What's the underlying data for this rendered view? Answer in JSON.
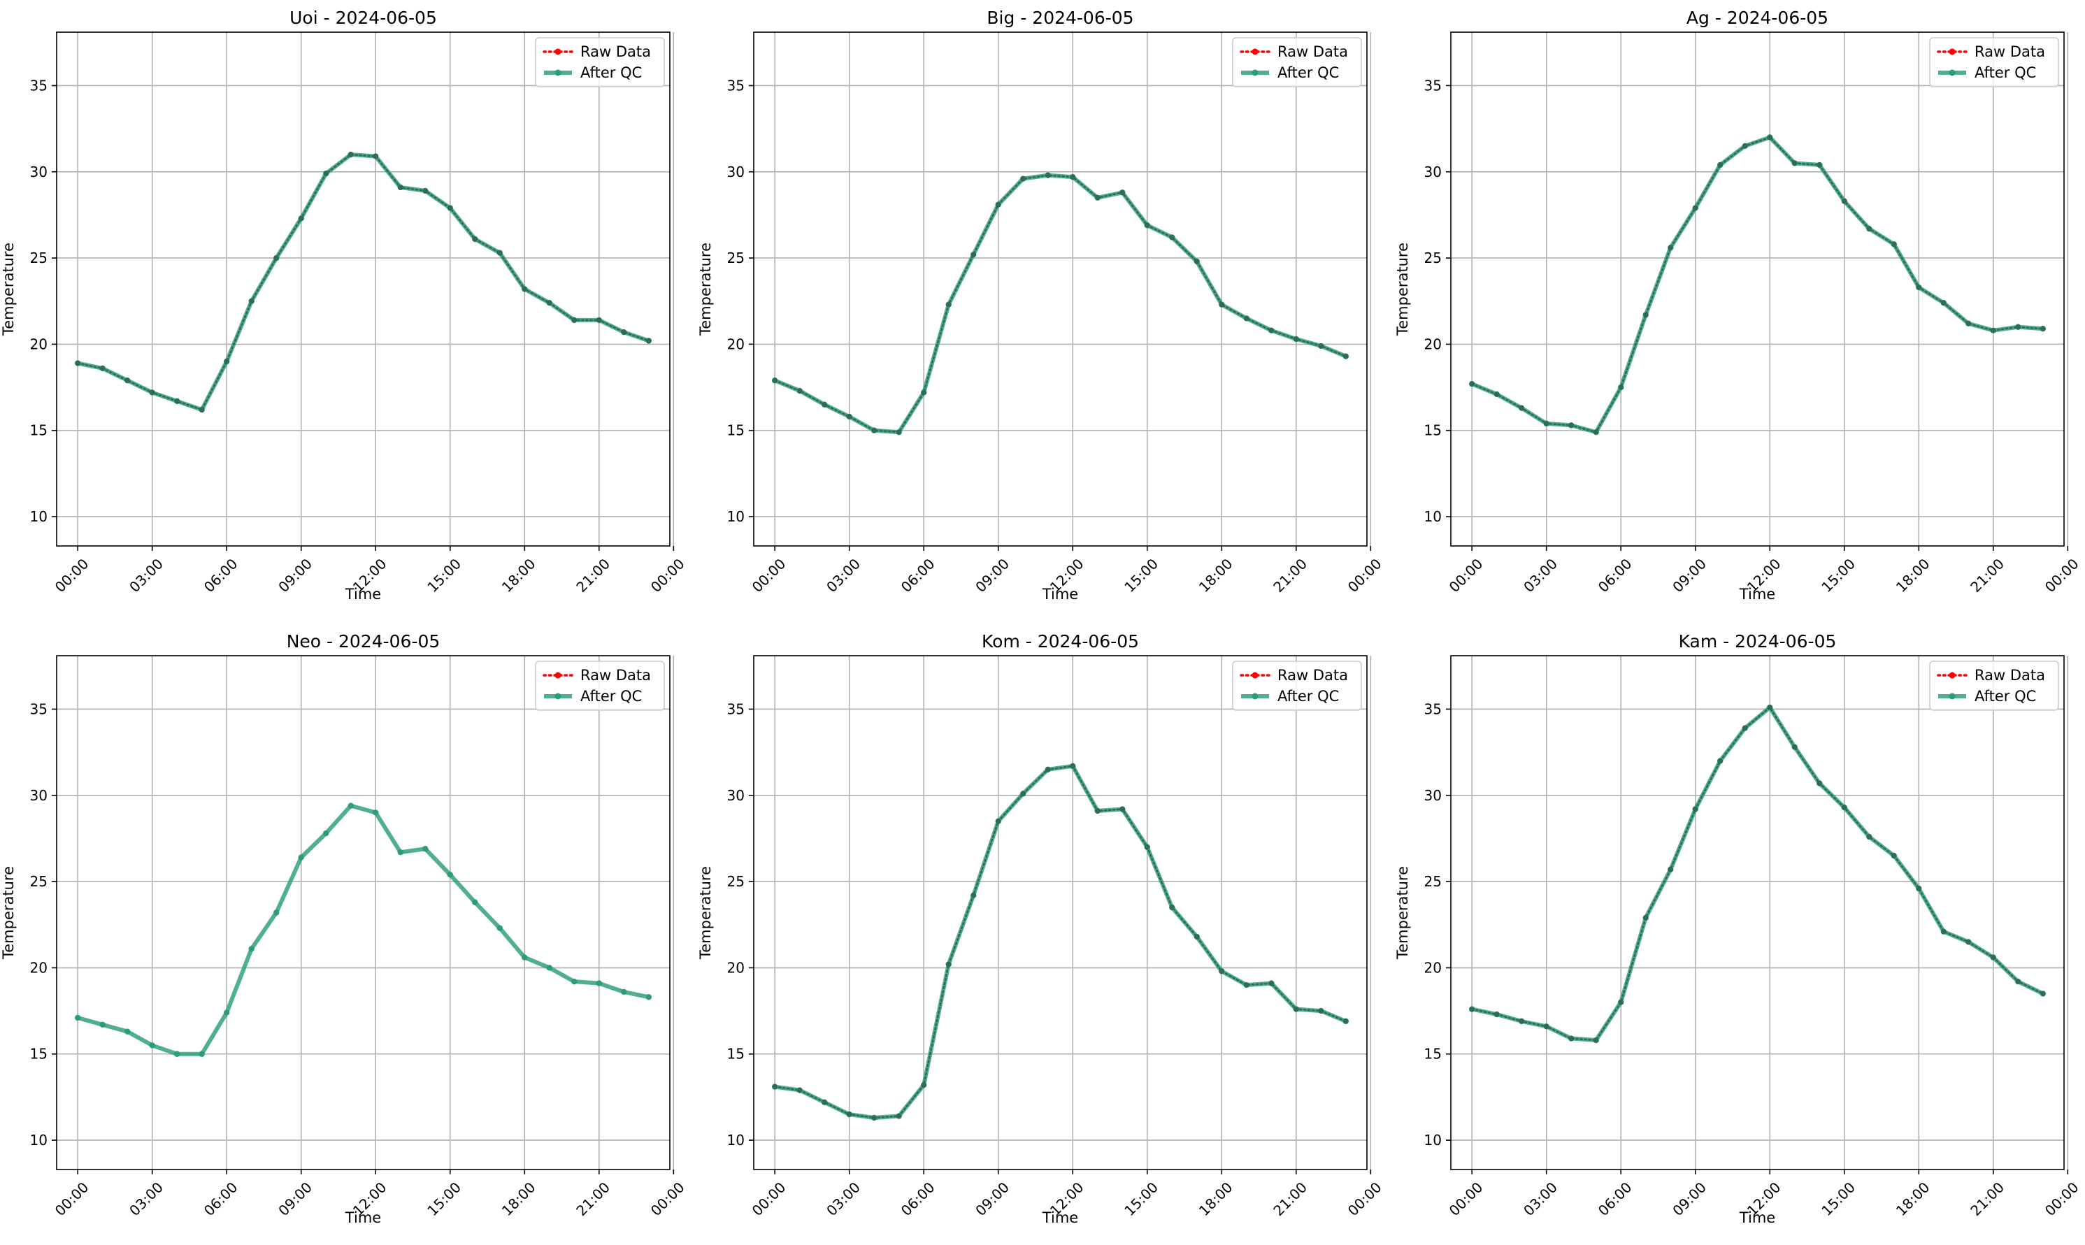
{
  "colors": {
    "raw": "#ff0000",
    "qc": "#2a9d78",
    "marker_overlap": "#2f6b56",
    "grid": "#b0b0b0"
  },
  "chart_data": [
    {
      "type": "line",
      "title": "Uoi - 2024-06-05",
      "xlabel": "Time",
      "ylabel": "Temperature",
      "x": [
        "00:00",
        "01:00",
        "02:00",
        "03:00",
        "04:00",
        "05:00",
        "06:00",
        "07:00",
        "08:00",
        "09:00",
        "10:00",
        "11:00",
        "12:00",
        "13:00",
        "14:00",
        "15:00",
        "16:00",
        "17:00",
        "18:00",
        "19:00",
        "20:00",
        "21:00",
        "22:00",
        "23:00"
      ],
      "xticks": [
        "00:00",
        "03:00",
        "06:00",
        "09:00",
        "12:00",
        "15:00",
        "18:00",
        "21:00",
        "00:00"
      ],
      "yticks": [
        10,
        15,
        20,
        25,
        30,
        35
      ],
      "ylim": [
        8.3,
        38.1
      ],
      "grid": true,
      "legend": "top-right",
      "raw_visible": true,
      "series": [
        {
          "name": "Raw Data",
          "values": [
            18.9,
            18.6,
            17.9,
            17.2,
            16.7,
            16.2,
            19.0,
            22.5,
            25.0,
            27.3,
            29.9,
            31.0,
            30.9,
            29.1,
            28.9,
            27.9,
            26.1,
            25.3,
            23.2,
            22.4,
            21.4,
            21.4,
            20.7,
            20.2
          ]
        },
        {
          "name": "After QC",
          "values": [
            18.9,
            18.6,
            17.9,
            17.2,
            16.7,
            16.2,
            19.0,
            22.5,
            25.0,
            27.3,
            29.9,
            31.0,
            30.9,
            29.1,
            28.9,
            27.9,
            26.1,
            25.3,
            23.2,
            22.4,
            21.4,
            21.4,
            20.7,
            20.2
          ]
        }
      ]
    },
    {
      "type": "line",
      "title": "Big - 2024-06-05",
      "xlabel": "Time",
      "ylabel": "Temperature",
      "x": [
        "00:00",
        "01:00",
        "02:00",
        "03:00",
        "04:00",
        "05:00",
        "06:00",
        "07:00",
        "08:00",
        "09:00",
        "10:00",
        "11:00",
        "12:00",
        "13:00",
        "14:00",
        "15:00",
        "16:00",
        "17:00",
        "18:00",
        "19:00",
        "20:00",
        "21:00",
        "22:00",
        "23:00"
      ],
      "xticks": [
        "00:00",
        "03:00",
        "06:00",
        "09:00",
        "12:00",
        "15:00",
        "18:00",
        "21:00",
        "00:00"
      ],
      "yticks": [
        10,
        15,
        20,
        25,
        30,
        35
      ],
      "ylim": [
        8.3,
        38.1
      ],
      "grid": true,
      "legend": "top-right",
      "raw_visible": true,
      "series": [
        {
          "name": "Raw Data",
          "values": [
            17.9,
            17.3,
            16.5,
            15.8,
            15.0,
            14.9,
            17.2,
            22.3,
            25.2,
            28.1,
            29.6,
            29.8,
            29.7,
            28.5,
            28.8,
            26.9,
            26.2,
            24.8,
            22.3,
            21.5,
            20.8,
            20.3,
            19.9,
            19.3
          ]
        },
        {
          "name": "After QC",
          "values": [
            17.9,
            17.3,
            16.5,
            15.8,
            15.0,
            14.9,
            17.2,
            22.3,
            25.2,
            28.1,
            29.6,
            29.8,
            29.7,
            28.5,
            28.8,
            26.9,
            26.2,
            24.8,
            22.3,
            21.5,
            20.8,
            20.3,
            19.9,
            19.3
          ]
        }
      ]
    },
    {
      "type": "line",
      "title": "Ag - 2024-06-05",
      "xlabel": "Time",
      "ylabel": "Temperature",
      "x": [
        "00:00",
        "01:00",
        "02:00",
        "03:00",
        "04:00",
        "05:00",
        "06:00",
        "07:00",
        "08:00",
        "09:00",
        "10:00",
        "11:00",
        "12:00",
        "13:00",
        "14:00",
        "15:00",
        "16:00",
        "17:00",
        "18:00",
        "19:00",
        "20:00",
        "21:00",
        "22:00",
        "23:00"
      ],
      "xticks": [
        "00:00",
        "03:00",
        "06:00",
        "09:00",
        "12:00",
        "15:00",
        "18:00",
        "21:00",
        "00:00"
      ],
      "yticks": [
        10,
        15,
        20,
        25,
        30,
        35
      ],
      "ylim": [
        8.3,
        38.1
      ],
      "grid": true,
      "legend": "top-right",
      "raw_visible": true,
      "series": [
        {
          "name": "Raw Data",
          "values": [
            17.7,
            17.1,
            16.3,
            15.4,
            15.3,
            14.9,
            17.5,
            21.7,
            25.6,
            27.9,
            30.4,
            31.5,
            32.0,
            30.5,
            30.4,
            28.3,
            26.7,
            25.8,
            23.3,
            22.4,
            21.2,
            20.8,
            21.0,
            20.9
          ]
        },
        {
          "name": "After QC",
          "values": [
            17.7,
            17.1,
            16.3,
            15.4,
            15.3,
            14.9,
            17.5,
            21.7,
            25.6,
            27.9,
            30.4,
            31.5,
            32.0,
            30.5,
            30.4,
            28.3,
            26.7,
            25.8,
            23.3,
            22.4,
            21.2,
            20.8,
            21.0,
            20.9
          ]
        }
      ]
    },
    {
      "type": "line",
      "title": "Neo - 2024-06-05",
      "xlabel": "Time",
      "ylabel": "Temperature",
      "x": [
        "00:00",
        "01:00",
        "02:00",
        "03:00",
        "04:00",
        "05:00",
        "06:00",
        "07:00",
        "08:00",
        "09:00",
        "10:00",
        "11:00",
        "12:00",
        "13:00",
        "14:00",
        "15:00",
        "16:00",
        "17:00",
        "18:00",
        "19:00",
        "20:00",
        "21:00",
        "22:00",
        "23:00"
      ],
      "xticks": [
        "00:00",
        "03:00",
        "06:00",
        "09:00",
        "12:00",
        "15:00",
        "18:00",
        "21:00",
        "00:00"
      ],
      "yticks": [
        10,
        15,
        20,
        25,
        30,
        35
      ],
      "ylim": [
        8.3,
        38.1
      ],
      "grid": true,
      "legend": "top-right",
      "raw_visible": false,
      "series": [
        {
          "name": "Raw Data",
          "values": [
            17.1,
            16.7,
            16.3,
            15.5,
            15.0,
            15.0,
            17.4,
            21.1,
            23.2,
            26.4,
            27.8,
            29.4,
            29.0,
            26.7,
            26.9,
            25.4,
            23.8,
            22.3,
            20.6,
            20.0,
            19.2,
            19.1,
            18.6,
            18.3
          ]
        },
        {
          "name": "After QC",
          "values": [
            17.1,
            16.7,
            16.3,
            15.5,
            15.0,
            15.0,
            17.4,
            21.1,
            23.2,
            26.4,
            27.8,
            29.4,
            29.0,
            26.7,
            26.9,
            25.4,
            23.8,
            22.3,
            20.6,
            20.0,
            19.2,
            19.1,
            18.6,
            18.3
          ]
        }
      ]
    },
    {
      "type": "line",
      "title": "Kom - 2024-06-05",
      "xlabel": "Time",
      "ylabel": "Temperature",
      "x": [
        "00:00",
        "01:00",
        "02:00",
        "03:00",
        "04:00",
        "05:00",
        "06:00",
        "07:00",
        "08:00",
        "09:00",
        "10:00",
        "11:00",
        "12:00",
        "13:00",
        "14:00",
        "15:00",
        "16:00",
        "17:00",
        "18:00",
        "19:00",
        "20:00",
        "21:00",
        "22:00",
        "23:00"
      ],
      "xticks": [
        "00:00",
        "03:00",
        "06:00",
        "09:00",
        "12:00",
        "15:00",
        "18:00",
        "21:00",
        "00:00"
      ],
      "yticks": [
        10,
        15,
        20,
        25,
        30,
        35
      ],
      "ylim": [
        8.3,
        38.1
      ],
      "grid": true,
      "legend": "top-right",
      "raw_visible": true,
      "series": [
        {
          "name": "Raw Data",
          "values": [
            13.1,
            12.9,
            12.2,
            11.5,
            11.3,
            11.4,
            13.2,
            20.2,
            24.2,
            28.5,
            30.1,
            31.5,
            31.7,
            29.1,
            29.2,
            27.0,
            23.5,
            21.8,
            19.8,
            19.0,
            19.1,
            17.6,
            17.5,
            16.9
          ]
        },
        {
          "name": "After QC",
          "values": [
            13.1,
            12.9,
            12.2,
            11.5,
            11.3,
            11.4,
            13.2,
            20.2,
            24.2,
            28.5,
            30.1,
            31.5,
            31.7,
            29.1,
            29.2,
            27.0,
            23.5,
            21.8,
            19.8,
            19.0,
            19.1,
            17.6,
            17.5,
            16.9
          ]
        }
      ]
    },
    {
      "type": "line",
      "title": "Kam - 2024-06-05",
      "xlabel": "Time",
      "ylabel": "Temperature",
      "x": [
        "00:00",
        "01:00",
        "02:00",
        "03:00",
        "04:00",
        "05:00",
        "06:00",
        "07:00",
        "08:00",
        "09:00",
        "10:00",
        "11:00",
        "12:00",
        "13:00",
        "14:00",
        "15:00",
        "16:00",
        "17:00",
        "18:00",
        "19:00",
        "20:00",
        "21:00",
        "22:00",
        "23:00"
      ],
      "xticks": [
        "00:00",
        "03:00",
        "06:00",
        "09:00",
        "12:00",
        "15:00",
        "18:00",
        "21:00",
        "00:00"
      ],
      "yticks": [
        10,
        15,
        20,
        25,
        30,
        35
      ],
      "ylim": [
        8.3,
        38.1
      ],
      "grid": true,
      "legend": "top-right",
      "raw_visible": true,
      "series": [
        {
          "name": "Raw Data",
          "values": [
            17.6,
            17.3,
            16.9,
            16.6,
            15.9,
            15.8,
            18.0,
            22.9,
            25.7,
            29.2,
            32.0,
            33.9,
            35.1,
            32.8,
            30.7,
            29.3,
            27.6,
            26.5,
            24.6,
            22.1,
            21.5,
            20.6,
            19.2,
            18.5
          ]
        },
        {
          "name": "After QC",
          "values": [
            17.6,
            17.3,
            16.9,
            16.6,
            15.9,
            15.8,
            18.0,
            22.9,
            25.7,
            29.2,
            32.0,
            33.9,
            35.1,
            32.8,
            30.7,
            29.3,
            27.6,
            26.5,
            24.6,
            22.1,
            21.5,
            20.6,
            19.2,
            18.5
          ]
        }
      ]
    }
  ]
}
